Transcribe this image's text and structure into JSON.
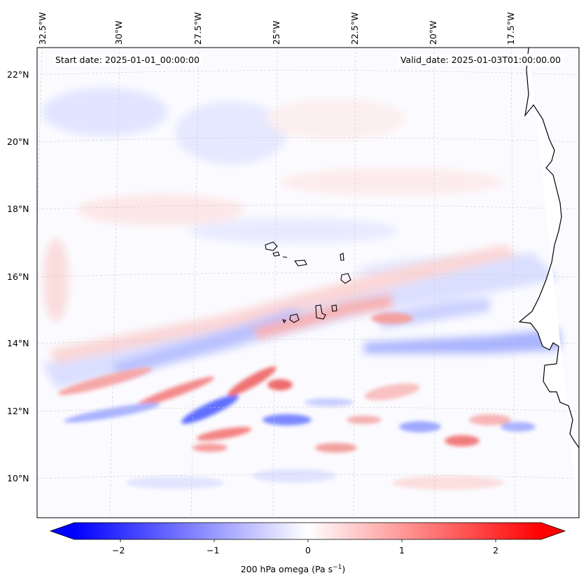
{
  "header": {
    "start_date": "Start date: 2025-01-01_00:00:00",
    "valid_date": "Valid_date: 2025-01-03T01:00:00.00"
  },
  "lon_labels": [
    "32.5°W",
    "30°W",
    "27.5°W",
    "25°W",
    "22.5°W",
    "20°W",
    "17.5°W"
  ],
  "lat_labels": [
    "22°N",
    "20°N",
    "18°N",
    "16°N",
    "14°N",
    "12°N",
    "10°N"
  ],
  "colorbar": {
    "title_main": "200 hPa omega (Pa s",
    "title_sup": "−1",
    "title_close": ")",
    "ticks": [
      "−2",
      "−1",
      "0",
      "1",
      "2"
    ],
    "range": [
      -2.75,
      2.75
    ],
    "colormap": "bwr",
    "extend": "both",
    "colors": {
      "min": "#0000ff",
      "mid": "#ffffff",
      "max": "#ff0000"
    }
  },
  "map": {
    "projection": "lambert-conformal",
    "gridlines": true,
    "coastlines": true,
    "field": "omega",
    "level_hPa": 200
  }
}
